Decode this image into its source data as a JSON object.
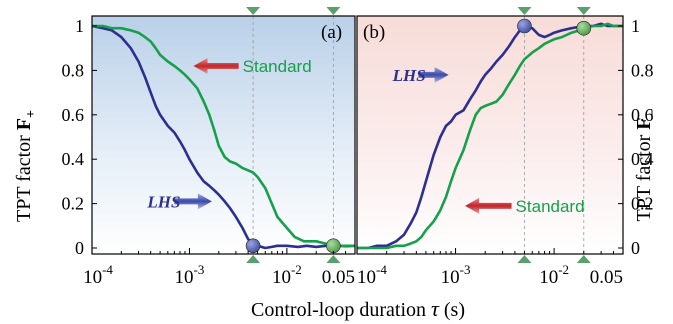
{
  "chart_data": [
    {
      "type": "line",
      "panel_label": "(a)",
      "ylabel": "TPT factor ",
      "ylabel_symbol": "F",
      "ylabel_sub": "+",
      "x_scale": "log",
      "xlim": [
        0.0001,
        0.05
      ],
      "ylim": [
        0,
        1
      ],
      "x_ticks": [
        0.0001,
        0.001,
        0.01,
        0.05
      ],
      "x_tick_labels": [
        {
          "base": "10",
          "exp": "-4"
        },
        {
          "base": "10",
          "exp": "-3"
        },
        {
          "base": "10",
          "exp": "-2"
        },
        {
          "base": "0.05",
          "exp": ""
        }
      ],
      "y_ticks": [
        0,
        0.2,
        0.4,
        0.6,
        0.8,
        1
      ],
      "y_tick_labels": [
        "0",
        "0.2",
        "0.4",
        "0.6",
        "0.8",
        "1"
      ],
      "background": "blue-gradient",
      "series": [
        {
          "name": "LHS",
          "color": "#2c2f8f",
          "x": [
            0.0001,
            0.00013,
            0.00016,
            0.0002,
            0.00025,
            0.0003,
            0.00035,
            0.0004,
            0.00045,
            0.0005,
            0.0006,
            0.0007,
            0.0008,
            0.0009,
            0.001,
            0.0012,
            0.0014,
            0.0016,
            0.0018,
            0.002,
            0.0023,
            0.0026,
            0.003,
            0.0035,
            0.004,
            0.0045,
            0.005,
            0.006,
            0.007,
            0.008,
            0.01,
            0.013,
            0.016,
            0.02,
            0.025,
            0.03,
            0.035,
            0.04,
            0.05
          ],
          "y": [
            1.0,
            0.99,
            0.98,
            0.95,
            0.9,
            0.84,
            0.77,
            0.7,
            0.64,
            0.6,
            0.55,
            0.52,
            0.48,
            0.44,
            0.4,
            0.34,
            0.3,
            0.28,
            0.26,
            0.24,
            0.21,
            0.18,
            0.14,
            0.09,
            0.04,
            0.015,
            0.01,
            0.0,
            0.005,
            0.01,
            0.01,
            0.005,
            0.01,
            0.005,
            0.01,
            0.005,
            0.01,
            0.008,
            0.01
          ]
        },
        {
          "name": "Standard",
          "color": "#16a04a",
          "x": [
            0.0001,
            0.00013,
            0.00016,
            0.0002,
            0.00025,
            0.0003,
            0.00035,
            0.0004,
            0.00045,
            0.0005,
            0.0006,
            0.0007,
            0.0008,
            0.0009,
            0.001,
            0.0012,
            0.0014,
            0.0016,
            0.0018,
            0.002,
            0.0023,
            0.0026,
            0.003,
            0.0035,
            0.004,
            0.0045,
            0.005,
            0.006,
            0.007,
            0.008,
            0.01,
            0.012,
            0.015,
            0.018,
            0.02,
            0.025,
            0.03,
            0.035,
            0.04,
            0.05
          ],
          "y": [
            1.0,
            1.0,
            0.99,
            0.99,
            0.98,
            0.97,
            0.95,
            0.93,
            0.9,
            0.87,
            0.84,
            0.82,
            0.8,
            0.78,
            0.76,
            0.72,
            0.66,
            0.6,
            0.53,
            0.46,
            0.41,
            0.39,
            0.38,
            0.36,
            0.35,
            0.34,
            0.32,
            0.27,
            0.2,
            0.14,
            0.09,
            0.05,
            0.03,
            0.03,
            0.03,
            0.02,
            0.01,
            0.01,
            0.01,
            0.01
          ]
        }
      ],
      "markers": [
        {
          "series": "LHS",
          "x": 0.0045,
          "y": 0.01,
          "color": "#4d59a8"
        },
        {
          "series": "Standard",
          "x": 0.03,
          "y": 0.01,
          "color": "#5aa35a"
        }
      ],
      "vlines": [
        0.0045,
        0.03
      ],
      "annotations": [
        {
          "text": "Standard",
          "style": "sans",
          "color": "#16a04a",
          "arrow_color": "#c0262c",
          "arrow_dir": "left",
          "x": 0.0032,
          "y": 0.82,
          "arrow_from_x": 0.0032,
          "arrow_to_x": 0.0011
        },
        {
          "text": "LHS",
          "style": "italic-bold",
          "color": "#2c2f8f",
          "arrow_color": "#3a4aa8",
          "arrow_dir": "right",
          "x": 0.00037,
          "y": 0.21,
          "arrow_from_x": 0.0007,
          "arrow_to_x": 0.0017
        }
      ]
    },
    {
      "type": "line",
      "panel_label": "(b)",
      "ylabel": "TPT factor ",
      "ylabel_symbol": "F",
      "ylabel_sub": "–",
      "x_scale": "log",
      "xlim": [
        0.0001,
        0.05
      ],
      "ylim": [
        0,
        1
      ],
      "x_ticks": [
        0.0001,
        0.001,
        0.01,
        0.05
      ],
      "x_tick_labels": [
        {
          "base": "10",
          "exp": "-4"
        },
        {
          "base": "10",
          "exp": "-3"
        },
        {
          "base": "10",
          "exp": "-2"
        },
        {
          "base": "0.05",
          "exp": ""
        }
      ],
      "y_ticks": [
        0,
        0.2,
        0.4,
        0.6,
        0.8,
        1
      ],
      "y_tick_labels": [
        "0",
        "0.2",
        "0.4",
        "0.6",
        "0.8",
        "1"
      ],
      "background": "red-gradient",
      "series": [
        {
          "name": "LHS",
          "color": "#2c2f8f",
          "x": [
            0.0001,
            0.00013,
            0.00016,
            0.0002,
            0.00025,
            0.0003,
            0.00035,
            0.0004,
            0.00045,
            0.0005,
            0.0006,
            0.0007,
            0.0008,
            0.0009,
            0.001,
            0.0012,
            0.0014,
            0.0016,
            0.0018,
            0.002,
            0.0023,
            0.0026,
            0.003,
            0.0035,
            0.004,
            0.0045,
            0.005,
            0.006,
            0.007,
            0.008,
            0.009,
            0.01,
            0.012,
            0.015,
            0.02,
            0.025,
            0.03,
            0.035,
            0.04,
            0.05
          ],
          "y": [
            0.0,
            0.0,
            0.01,
            0.01,
            0.03,
            0.06,
            0.11,
            0.16,
            0.23,
            0.3,
            0.42,
            0.5,
            0.55,
            0.57,
            0.6,
            0.62,
            0.67,
            0.71,
            0.75,
            0.78,
            0.81,
            0.84,
            0.87,
            0.91,
            0.95,
            0.98,
            1.0,
            0.99,
            0.96,
            0.95,
            0.96,
            0.97,
            0.98,
            0.99,
            1.0,
            1.0,
            1.01,
            1.0,
            1.0,
            1.0
          ]
        },
        {
          "name": "Standard",
          "color": "#16a04a",
          "x": [
            0.0001,
            0.00013,
            0.00016,
            0.0002,
            0.00025,
            0.0003,
            0.00035,
            0.0004,
            0.00045,
            0.0005,
            0.0006,
            0.0007,
            0.0008,
            0.0009,
            0.001,
            0.0012,
            0.0014,
            0.0016,
            0.0018,
            0.002,
            0.0023,
            0.0026,
            0.003,
            0.0035,
            0.004,
            0.0045,
            0.005,
            0.006,
            0.007,
            0.008,
            0.01,
            0.012,
            0.015,
            0.018,
            0.02,
            0.025,
            0.03,
            0.035,
            0.04,
            0.05
          ],
          "y": [
            0.0,
            0.0,
            0.0,
            0.0,
            0.01,
            0.01,
            0.02,
            0.03,
            0.05,
            0.08,
            0.12,
            0.17,
            0.23,
            0.3,
            0.36,
            0.44,
            0.53,
            0.6,
            0.63,
            0.64,
            0.65,
            0.66,
            0.69,
            0.74,
            0.78,
            0.82,
            0.85,
            0.88,
            0.9,
            0.92,
            0.94,
            0.95,
            0.97,
            0.98,
            0.99,
            1.0,
            1.0,
            1.01,
            1.0,
            1.0
          ]
        }
      ],
      "markers": [
        {
          "series": "LHS",
          "x": 0.005,
          "y": 1.0,
          "color": "#4d59a8"
        },
        {
          "series": "Standard",
          "x": 0.02,
          "y": 0.99,
          "color": "#5aa35a"
        }
      ],
      "vlines": [
        0.005,
        0.02
      ],
      "annotations": [
        {
          "text": "LHS",
          "style": "italic-bold",
          "color": "#2c2f8f",
          "arrow_color": "#3a4aa8",
          "arrow_dir": "right",
          "x": 0.00023,
          "y": 0.78,
          "arrow_from_x": 0.00042,
          "arrow_to_x": 0.00085
        },
        {
          "text": "Standard",
          "style": "sans",
          "color": "#16a04a",
          "arrow_color": "#c0262c",
          "arrow_dir": "left",
          "x": 0.0037,
          "y": 0.19,
          "arrow_from_x": 0.0037,
          "arrow_to_x": 0.00125
        }
      ]
    }
  ],
  "xlabel": "Control-loop duration ",
  "xlabel_symbol": "τ",
  "xlabel_unit": " (s)",
  "colors": {
    "axis": "#000000",
    "guide_marker": "#5aa06a",
    "vline": "#9a9a9a"
  }
}
